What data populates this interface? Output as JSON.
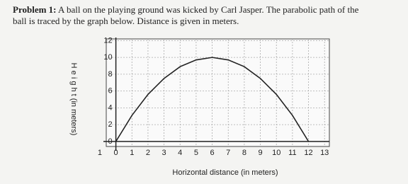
{
  "problem": {
    "label": "Problem 1:",
    "lines": [
      " A ball on the playing ground was kicked by Carl Jasper. The parabolic path of the",
      "ball is traced by the graph below. Distance is given in meters."
    ]
  },
  "chart_data": {
    "type": "line",
    "x_label": "Horizontal distance (in meters)",
    "y_label": "H e i g h t (in meters)",
    "x": [
      0,
      1,
      2,
      3,
      4,
      5,
      6,
      7,
      8,
      9,
      10,
      11,
      12
    ],
    "series": [
      {
        "color": "#222222",
        "values": [
          0,
          3.1,
          5.6,
          7.5,
          8.9,
          9.7,
          10,
          9.7,
          8.9,
          7.5,
          5.6,
          3.1,
          0
        ]
      }
    ],
    "xlim": [
      -0.6,
      13.3
    ],
    "ylim": [
      -0.6,
      12.2
    ],
    "xticks": [
      {
        "value": -1,
        "label": "1"
      },
      0,
      1,
      2,
      3,
      4,
      5,
      6,
      7,
      8,
      9,
      10,
      11,
      12,
      13
    ],
    "yticks": [
      0,
      2,
      4,
      6,
      8,
      10,
      12
    ],
    "grid": true
  }
}
